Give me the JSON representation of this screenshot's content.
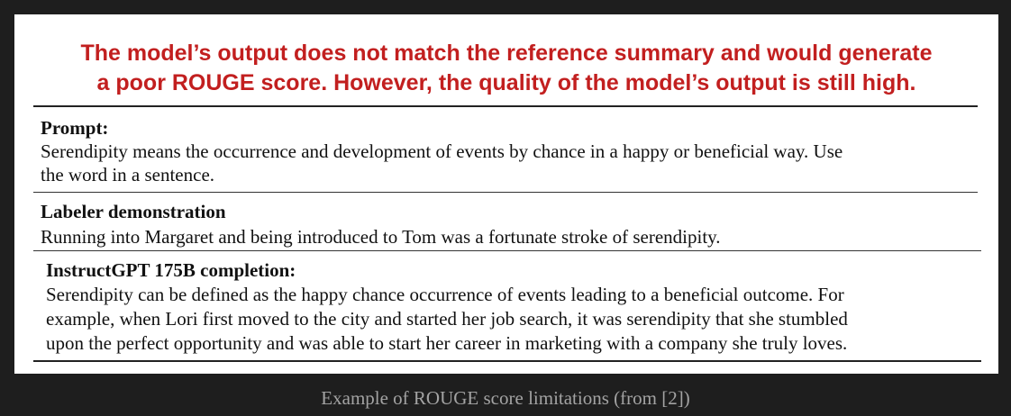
{
  "headline": {
    "line1": "The model’s output does not match the reference summary and would generate",
    "line2": "a poor ROUGE score. However, the quality of the model’s output is still high."
  },
  "prompt": {
    "title": "Prompt:",
    "lines": [
      "Serendipity means the occurrence and development of events by chance in a happy or beneficial way. Use",
      "the word in a sentence."
    ]
  },
  "labeler": {
    "title": "Labeler demonstration",
    "lines": [
      "Running into Margaret and being introduced to Tom was a fortunate stroke of serendipity."
    ]
  },
  "completion": {
    "title": "InstructGPT 175B completion:",
    "lines": [
      "Serendipity can be defined as the happy chance occurrence of events leading to a beneficial outcome. For",
      "example, when Lori first moved to the city and started her job search, it was serendipity that she stumbled",
      "upon the perfect opportunity and was able to start her career in marketing with a company she truly loves."
    ]
  },
  "caption": "Example of ROUGE score limitations (from [2])"
}
